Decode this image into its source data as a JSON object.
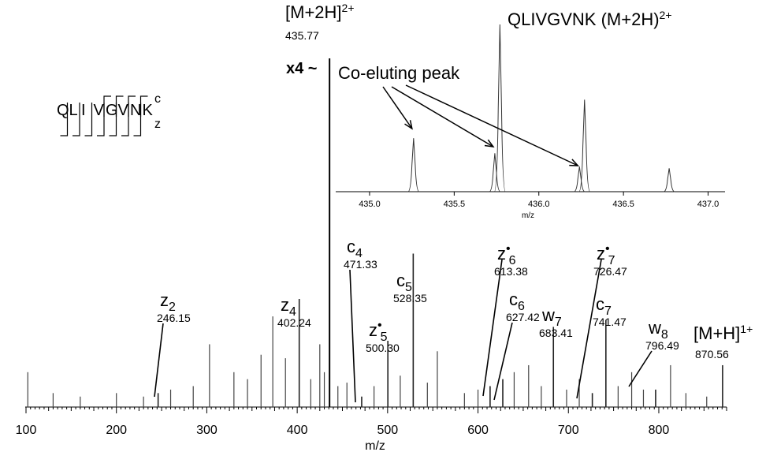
{
  "chart_data": {
    "type": "bar",
    "xlabel": "m/z",
    "xlim": [
      100,
      875
    ],
    "xticks": [
      100,
      200,
      300,
      400,
      500,
      600,
      700,
      800
    ],
    "sequence": {
      "residues": [
        "Q",
        "L",
        "I",
        "V",
        "G",
        "V",
        "N",
        "K"
      ],
      "c_label": "c",
      "z_label": "z"
    },
    "precursor": {
      "label": "[M+2H]",
      "charge": "2+",
      "mz_text": "435.77",
      "mz": 435.77,
      "scale_label": "x4 ~"
    },
    "annotations": [
      {
        "ion": "z",
        "sub": "2",
        "radical": false,
        "mass": "246.15",
        "mz": 246.15,
        "intensity": 0.04
      },
      {
        "ion": "z",
        "sub": "4",
        "radical": false,
        "mass": "402.24",
        "mz": 402.24,
        "intensity": 0.31
      },
      {
        "ion": "c",
        "sub": "4",
        "radical": false,
        "mass": "471.33",
        "mz": 471.33,
        "intensity": 0.03
      },
      {
        "ion": "z",
        "sub": "5",
        "radical": true,
        "mass": "500.30",
        "mz": 500.3,
        "intensity": 0.19
      },
      {
        "ion": "c",
        "sub": "5",
        "radical": false,
        "mass": "528.35",
        "mz": 528.35,
        "intensity": 0.44
      },
      {
        "ion": "z",
        "sub": "6",
        "radical": true,
        "mass": "613.38",
        "mz": 613.38,
        "intensity": 0.06
      },
      {
        "ion": "c",
        "sub": "6",
        "radical": false,
        "mass": "627.42",
        "mz": 627.42,
        "intensity": 0.08
      },
      {
        "ion": "w",
        "sub": "7",
        "radical": false,
        "mass": "683.41",
        "mz": 683.41,
        "intensity": 0.23
      },
      {
        "ion": "z",
        "sub": "7",
        "radical": true,
        "mass": "726.47",
        "mz": 726.47,
        "intensity": 0.04
      },
      {
        "ion": "c",
        "sub": "7",
        "radical": false,
        "mass": "741.47",
        "mz": 741.47,
        "intensity": 0.25
      },
      {
        "ion": "w",
        "sub": "8",
        "radical": false,
        "mass": "796.49",
        "mz": 796.49,
        "intensity": 0.05
      },
      {
        "ion": "[M+H]",
        "sub": "",
        "sup": "1+",
        "radical": false,
        "mass": "870.56",
        "mz": 870.56,
        "intensity": 0.12
      }
    ],
    "minor_peaks": [
      {
        "mz": 102,
        "intensity": 0.1
      },
      {
        "mz": 130,
        "intensity": 0.04
      },
      {
        "mz": 160,
        "intensity": 0.03
      },
      {
        "mz": 200,
        "intensity": 0.04
      },
      {
        "mz": 230,
        "intensity": 0.03
      },
      {
        "mz": 260,
        "intensity": 0.05
      },
      {
        "mz": 285,
        "intensity": 0.06
      },
      {
        "mz": 303,
        "intensity": 0.18
      },
      {
        "mz": 330,
        "intensity": 0.1
      },
      {
        "mz": 345,
        "intensity": 0.08
      },
      {
        "mz": 360,
        "intensity": 0.15
      },
      {
        "mz": 373,
        "intensity": 0.26
      },
      {
        "mz": 387,
        "intensity": 0.14
      },
      {
        "mz": 415,
        "intensity": 0.08
      },
      {
        "mz": 425,
        "intensity": 0.18
      },
      {
        "mz": 430,
        "intensity": 0.1
      },
      {
        "mz": 445,
        "intensity": 0.06
      },
      {
        "mz": 455,
        "intensity": 0.07
      },
      {
        "mz": 485,
        "intensity": 0.06
      },
      {
        "mz": 514,
        "intensity": 0.09
      },
      {
        "mz": 544,
        "intensity": 0.07
      },
      {
        "mz": 555,
        "intensity": 0.16
      },
      {
        "mz": 585,
        "intensity": 0.04
      },
      {
        "mz": 600,
        "intensity": 0.05
      },
      {
        "mz": 640,
        "intensity": 0.1
      },
      {
        "mz": 656,
        "intensity": 0.12
      },
      {
        "mz": 670,
        "intensity": 0.06
      },
      {
        "mz": 698,
        "intensity": 0.05
      },
      {
        "mz": 712,
        "intensity": 0.08
      },
      {
        "mz": 755,
        "intensity": 0.06
      },
      {
        "mz": 770,
        "intensity": 0.1
      },
      {
        "mz": 783,
        "intensity": 0.05
      },
      {
        "mz": 813,
        "intensity": 0.12
      },
      {
        "mz": 830,
        "intensity": 0.04
      },
      {
        "mz": 853,
        "intensity": 0.03
      }
    ],
    "inset": {
      "title": "QLIVGVNK (M+2H)",
      "title_sup": "2+",
      "annotation": "Co-eluting peak",
      "xlabel": "m/z",
      "xlim": [
        434.8,
        437.1
      ],
      "xticks": [
        "435.0",
        "435.5",
        "436.0",
        "436.5",
        "437.0"
      ],
      "peaks": [
        {
          "mz": 435.26,
          "intensity": 0.32
        },
        {
          "mz": 435.74,
          "intensity": 0.23
        },
        {
          "mz": 435.77,
          "intensity": 1.0
        },
        {
          "mz": 436.24,
          "intensity": 0.15
        },
        {
          "mz": 436.27,
          "intensity": 0.55
        },
        {
          "mz": 436.77,
          "intensity": 0.14
        }
      ],
      "coeluting_mz": [
        435.26,
        435.74,
        436.24
      ]
    }
  }
}
